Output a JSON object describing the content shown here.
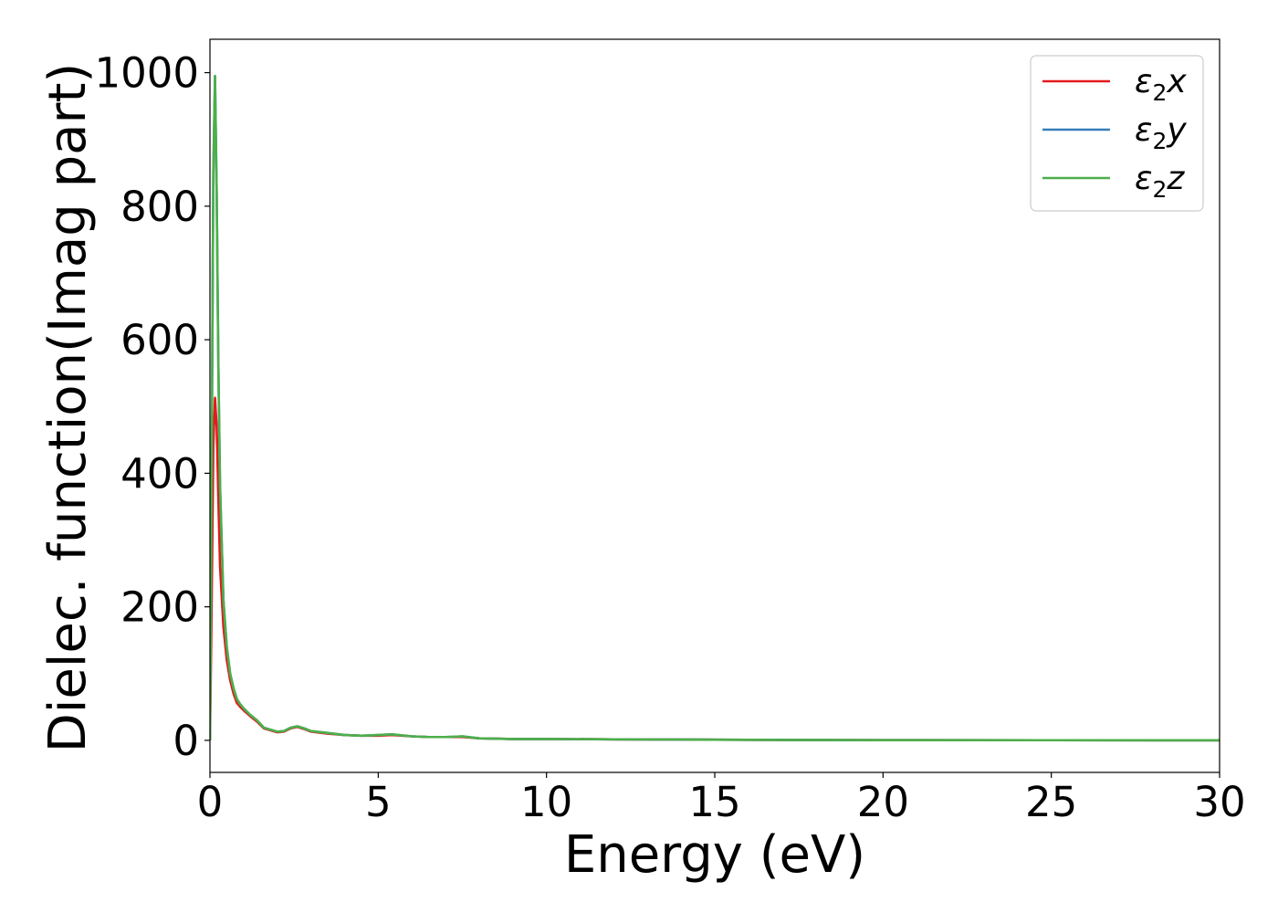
{
  "chart_data": {
    "type": "line",
    "title": "",
    "xlabel": "Energy (eV)",
    "ylabel": "Dielec. function(Imag part)",
    "xlim": [
      0,
      30
    ],
    "ylim": [
      -48,
      1050
    ],
    "xticks": [
      0,
      5,
      10,
      15,
      20,
      25,
      30
    ],
    "yticks": [
      0,
      200,
      400,
      600,
      800,
      1000
    ],
    "xtick_labels": [
      "0",
      "5",
      "10",
      "15",
      "20",
      "25",
      "30"
    ],
    "ytick_labels": [
      "0",
      "200",
      "400",
      "600",
      "800",
      "1000"
    ],
    "grid": false,
    "legend_position": "top-right",
    "series": [
      {
        "name": "ε2x",
        "legend_base": "ε",
        "legend_sub": "2",
        "legend_tail": "x",
        "color": "#e41a1c",
        "x": [
          0.0,
          0.05,
          0.1,
          0.15,
          0.2,
          0.25,
          0.3,
          0.4,
          0.5,
          0.6,
          0.7,
          0.8,
          0.9,
          1.0,
          1.2,
          1.4,
          1.6,
          1.8,
          2.0,
          2.2,
          2.4,
          2.6,
          2.8,
          3.0,
          3.5,
          4.0,
          4.5,
          5.0,
          5.4,
          6.0,
          6.5,
          7.0,
          7.5,
          8.0,
          9.0,
          10.0,
          12.0,
          15.0,
          18.0,
          20.0,
          25.0,
          30.0
        ],
        "y": [
          0,
          200,
          440,
          513,
          470,
          360,
          260,
          170,
          120,
          90,
          70,
          56,
          50,
          45,
          36,
          28,
          18,
          15,
          12,
          13,
          18,
          20,
          17,
          13,
          10,
          8,
          7,
          7,
          8,
          6,
          5,
          5,
          5,
          3,
          2,
          2,
          1.5,
          1,
          0.5,
          0.3,
          0.2,
          0.1
        ]
      },
      {
        "name": "ε2y",
        "legend_base": "ε",
        "legend_sub": "2",
        "legend_tail": "y",
        "color": "#377eb8",
        "x": [
          0.0,
          0.05,
          0.1,
          0.15,
          0.2,
          0.25,
          0.3,
          0.4,
          0.5,
          0.6,
          0.7,
          0.8,
          0.9,
          1.0,
          1.2,
          1.4,
          1.6,
          1.8,
          2.0,
          2.2,
          2.4,
          2.6,
          2.8,
          3.0,
          3.5,
          4.0,
          4.5,
          5.0,
          5.4,
          6.0,
          6.5,
          7.0,
          7.5,
          8.0,
          9.0,
          10.0,
          12.0,
          15.0,
          18.0,
          20.0,
          25.0,
          30.0
        ],
        "y": [
          0,
          400,
          850,
          995,
          820,
          560,
          380,
          210,
          140,
          100,
          78,
          62,
          54,
          48,
          38,
          30,
          19,
          16,
          13,
          14,
          19,
          21,
          18,
          14,
          11,
          8,
          7,
          8,
          9,
          6,
          5,
          5,
          6,
          3,
          2,
          2,
          1.5,
          1,
          0.5,
          0.3,
          0.2,
          0.1
        ]
      },
      {
        "name": "ε2z",
        "legend_base": "ε",
        "legend_sub": "2",
        "legend_tail": "z",
        "color": "#4daf4a",
        "x": [
          0.0,
          0.05,
          0.1,
          0.15,
          0.2,
          0.25,
          0.3,
          0.4,
          0.5,
          0.6,
          0.7,
          0.8,
          0.9,
          1.0,
          1.2,
          1.4,
          1.6,
          1.8,
          2.0,
          2.2,
          2.4,
          2.6,
          2.8,
          3.0,
          3.5,
          4.0,
          4.5,
          5.0,
          5.4,
          6.0,
          6.5,
          7.0,
          7.5,
          8.0,
          9.0,
          10.0,
          12.0,
          15.0,
          18.0,
          20.0,
          25.0,
          30.0
        ],
        "y": [
          0,
          400,
          850,
          995,
          820,
          560,
          380,
          210,
          140,
          100,
          78,
          62,
          54,
          48,
          38,
          30,
          19,
          16,
          13,
          14,
          19,
          21,
          18,
          14,
          11,
          8,
          7,
          8,
          9,
          6,
          5,
          5,
          6,
          3,
          2,
          2,
          1.5,
          1,
          0.5,
          0.3,
          0.2,
          0.1
        ]
      }
    ]
  }
}
